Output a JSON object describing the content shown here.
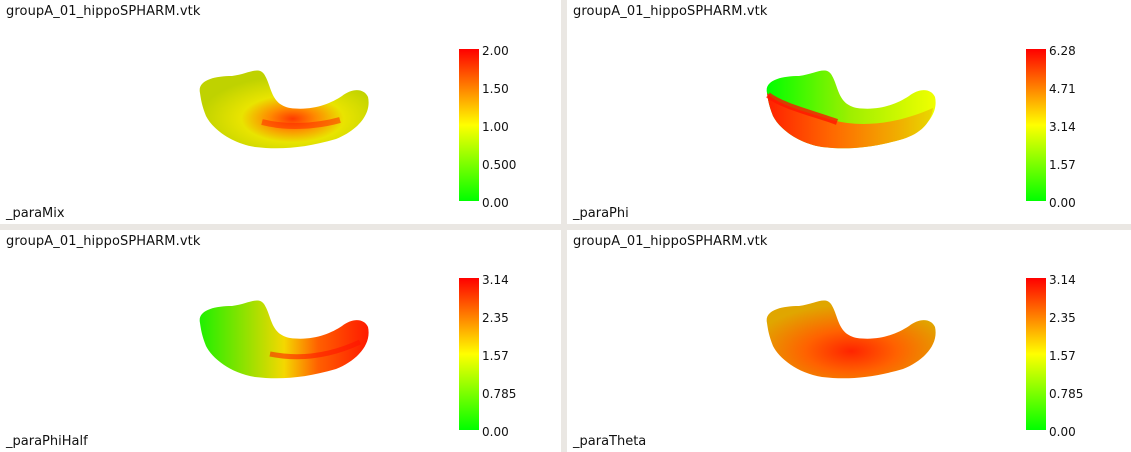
{
  "views": [
    {
      "title": "groupA_01_hippoSPHARM.vtk",
      "field": "_paraMix",
      "ticks": [
        "2.00",
        "1.50",
        "1.00",
        "0.500",
        "0.00"
      ]
    },
    {
      "title": "groupA_01_hippoSPHARM.vtk",
      "field": "_paraPhi",
      "ticks": [
        "6.28",
        "4.71",
        "3.14",
        "1.57",
        "0.00"
      ]
    },
    {
      "title": "groupA_01_hippoSPHARM.vtk",
      "field": "_paraPhiHalf",
      "ticks": [
        "3.14",
        "2.35",
        "1.57",
        "0.785",
        "0.00"
      ]
    },
    {
      "title": "groupA_01_hippoSPHARM.vtk",
      "field": "_paraTheta",
      "ticks": [
        "3.14",
        "2.35",
        "1.57",
        "0.785",
        "0.00"
      ]
    }
  ],
  "colormap": {
    "low": "#00ff00",
    "mid": "#ffff00",
    "high": "#ff0000"
  }
}
